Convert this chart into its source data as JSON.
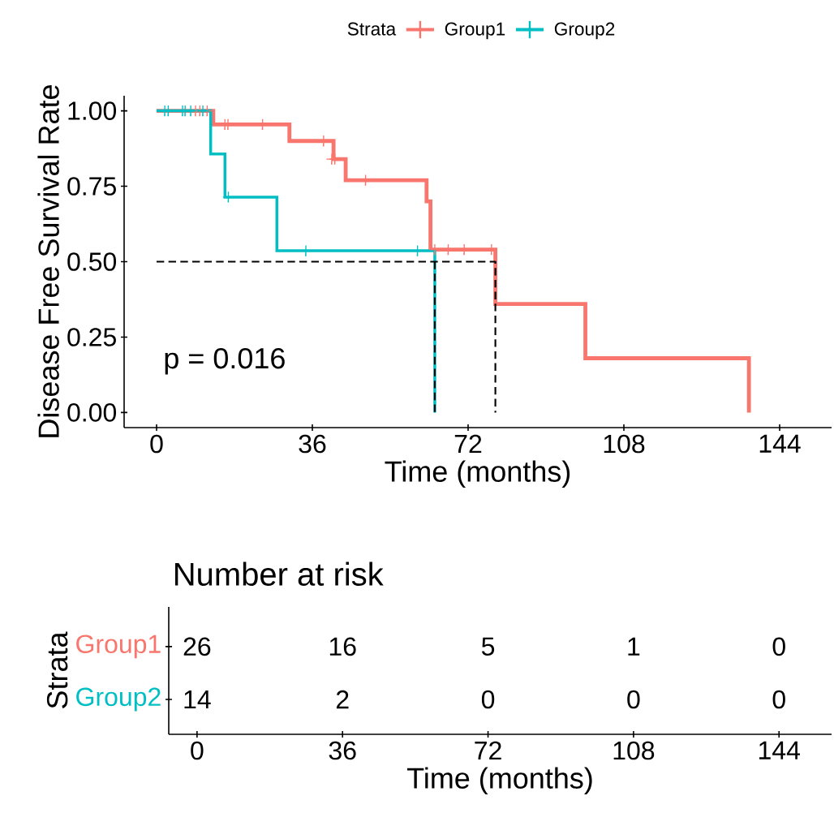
{
  "chart_data": [
    {
      "type": "step",
      "xlabel": "Time (months)",
      "ylabel": "Disease Free Survival Rate",
      "legend_title": "Strata",
      "legend": "top",
      "xlim": [
        -7.5,
        156
      ],
      "xticks": [
        0,
        36,
        72,
        108,
        144
      ],
      "ylim": [
        -0.05,
        1.05
      ],
      "yticks": [
        {
          "value": 0,
          "label": "0.00"
        },
        {
          "value": 0.25,
          "label": "0.25"
        },
        {
          "value": 0.5,
          "label": "0.50"
        },
        {
          "value": 0.75,
          "label": "0.75"
        },
        {
          "value": 1,
          "label": "1.00"
        }
      ],
      "annotations": [
        "p = 0.016"
      ],
      "series": [
        {
          "name": "Group1",
          "color": "#f8766d",
          "x": [
            0,
            13.1,
            30.7,
            40.9,
            43.7,
            62.4,
            63.3,
            78.3,
            99.1,
            136.9
          ],
          "values": [
            1,
            0.955,
            0.9,
            0.84,
            0.77,
            0.7,
            0.54,
            0.36,
            0.18,
            0
          ]
        },
        {
          "name": "Group2",
          "color": "#00bfc4",
          "x": [
            0,
            12.5,
            15.8,
            27.8,
            64.3
          ],
          "values": [
            1,
            0.857,
            0.714,
            0.536,
            0
          ]
        },
        {
          "type": "scatter",
          "marker": "cross",
          "color": "#f8766d",
          "x": [
            9.0,
            10.0,
            11.7,
            15.8,
            16.5,
            24.5,
            38.6,
            40.5,
            41.2,
            48.3,
            64.3,
            67.4,
            71.1,
            77.4
          ],
          "values": [
            1,
            1,
            1,
            0.955,
            0.955,
            0.955,
            0.9,
            0.84,
            0.84,
            0.77,
            0.54,
            0.54,
            0.54,
            0.54
          ]
        },
        {
          "type": "scatter",
          "marker": "cross",
          "color": "#00bfc4",
          "x": [
            1.9,
            2.7,
            6.0,
            6.6,
            7.9,
            10.7,
            16.6,
            34.5,
            60.3
          ],
          "values": [
            1,
            1,
            1,
            1,
            1,
            1,
            0.714,
            0.536,
            0.536
          ]
        },
        {
          "type": "line",
          "line_style": "dashed",
          "color": "#000000",
          "x": [
            0,
            78.3,
            78.3
          ],
          "values": [
            0.5,
            0.5,
            0
          ]
        },
        {
          "type": "line",
          "line_style": "dashed",
          "color": "#000000",
          "x": [
            64.3,
            64.3
          ],
          "values": [
            0.5,
            0
          ]
        }
      ]
    },
    {
      "type": "heatmap",
      "title": "Number at risk",
      "xlabel": "Time (months)",
      "ylabel": "Strata",
      "x": [
        0,
        36,
        72,
        108,
        144
      ],
      "xlim": [
        -7,
        157
      ],
      "xticks": [
        0,
        36,
        72,
        108,
        144
      ],
      "y_categories": [
        "Group1",
        "Group2"
      ],
      "colors": [
        "#f8766d",
        "#00bfc4"
      ],
      "data_labels": true,
      "cells": [
        [
          26,
          16,
          5,
          1,
          0
        ],
        [
          14,
          2,
          0,
          0,
          0
        ]
      ]
    }
  ]
}
